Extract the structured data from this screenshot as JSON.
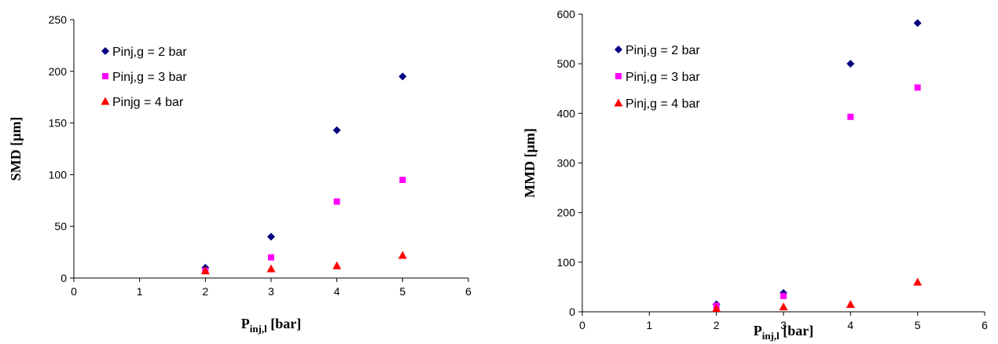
{
  "chart_data": [
    {
      "type": "scatter",
      "xlabel": {
        "main": "P",
        "sub": "inj,l",
        "unit": " [bar]"
      },
      "ylabel": "SMD [µm]",
      "xlim": [
        0,
        6
      ],
      "ylim": [
        0,
        250
      ],
      "xticks": [
        "0",
        "1",
        "2",
        "3",
        "4",
        "5",
        "6"
      ],
      "yticks": [
        "0",
        "50",
        "100",
        "150",
        "200",
        "250"
      ],
      "grid": false,
      "legend_position": "top-left",
      "series": [
        {
          "name": "Pinj,g = 2 bar",
          "marker": "diamond",
          "color": "#000080",
          "x": [
            2,
            3,
            4,
            5
          ],
          "y": [
            10,
            40,
            143,
            195
          ]
        },
        {
          "name": "Pinj,g = 3 bar",
          "marker": "square",
          "color": "#ff00ff",
          "x": [
            2,
            3,
            4,
            5
          ],
          "y": [
            7,
            20,
            74,
            95
          ]
        },
        {
          "name": "Pinjg = 4 bar",
          "marker": "triangle",
          "color": "#ff0000",
          "x": [
            2,
            3,
            4,
            5
          ],
          "y": [
            7,
            9,
            12,
            22
          ]
        }
      ]
    },
    {
      "type": "scatter",
      "xlabel": {
        "main": "P",
        "sub": "inj,l",
        "unit": " [bar]"
      },
      "ylabel": "MMD [µm]",
      "xlim": [
        0,
        6
      ],
      "ylim": [
        0,
        600
      ],
      "xticks": [
        "0",
        "1",
        "2",
        "3",
        "4",
        "5",
        "6"
      ],
      "yticks": [
        "0",
        "100",
        "200",
        "300",
        "400",
        "500",
        "600"
      ],
      "grid": false,
      "legend_position": "top-left",
      "series": [
        {
          "name": "Pinj,g = 2 bar",
          "marker": "diamond",
          "color": "#000080",
          "x": [
            2,
            3,
            4,
            5
          ],
          "y": [
            15,
            38,
            500,
            582
          ]
        },
        {
          "name": "Pinj,g = 3 bar",
          "marker": "square",
          "color": "#ff00ff",
          "x": [
            2,
            3,
            4,
            5
          ],
          "y": [
            12,
            32,
            393,
            452
          ]
        },
        {
          "name": "Pinj,g = 4 bar",
          "marker": "triangle",
          "color": "#ff0000",
          "x": [
            2,
            3,
            4,
            5
          ],
          "y": [
            7,
            10,
            15,
            60
          ]
        }
      ]
    }
  ]
}
